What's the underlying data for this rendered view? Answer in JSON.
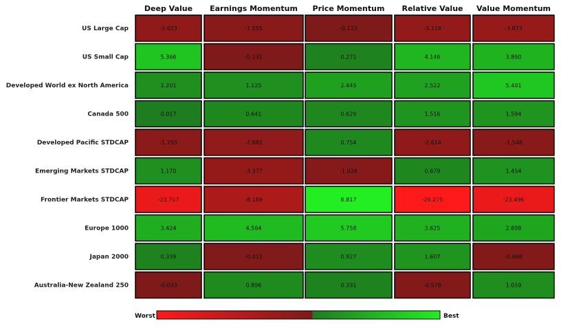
{
  "chart_data": {
    "type": "heatmap",
    "columns": [
      "Deep Value",
      "Earnings Momentum",
      "Price Momentum",
      "Relative Value",
      "Value Momentum"
    ],
    "rows": [
      "US Large Cap",
      "US Small Cap",
      "Developed World ex North America",
      "Canada 500",
      "Developed Pacific STDCAP",
      "Emerging Markets STDCAP",
      "Frontier Markets STDCAP",
      "Europe 1000",
      "Japan 2000",
      "Australia-New Zealand 250"
    ],
    "labels": [
      [
        "-2.623",
        "-1.555",
        "-0.122",
        "-3.114",
        "-3.873"
      ],
      [
        "5.366",
        "-0.132",
        "0.271",
        "4.146",
        "3.860"
      ],
      [
        "1.201",
        "1.125",
        "2.445",
        "2.522",
        "5.481"
      ],
      [
        "0.017",
        "0.641",
        "0.629",
        "1.516",
        "1.594"
      ],
      [
        "-1.793",
        "-2.882",
        "0.754",
        "-2.614",
        "-1.548"
      ],
      [
        "1.170",
        "-3.377",
        "-1.026",
        "0.679",
        "1.454"
      ],
      [
        "-23.767",
        "-8.189",
        "8.817",
        "-29.275",
        "-23.496"
      ],
      [
        "3.424",
        "4.564",
        "5.758",
        "3.625",
        "2.888"
      ],
      [
        "0.339",
        "-0.411",
        "0.927",
        "1.607",
        "-0.668"
      ],
      [
        "-0.033",
        "0.896",
        "0.331",
        "-0.578",
        "1.059"
      ]
    ],
    "values": [
      [
        -2.623,
        -1.555,
        -0.122,
        -3.114,
        -3.873
      ],
      [
        5.366,
        -0.132,
        0.271,
        4.146,
        3.86
      ],
      [
        1.201,
        1.125,
        2.445,
        2.522,
        5.481
      ],
      [
        0.017,
        0.641,
        0.629,
        1.516,
        1.594
      ],
      [
        -1.793,
        -2.882,
        0.754,
        -2.614,
        -1.548
      ],
      [
        1.17,
        -3.377,
        -1.026,
        0.679,
        1.454
      ],
      [
        -23.767,
        -8.189,
        8.817,
        -29.275,
        -23.496
      ],
      [
        3.424,
        4.564,
        5.758,
        3.625,
        2.888
      ],
      [
        0.339,
        -0.411,
        0.927,
        1.607,
        -0.668
      ],
      [
        -0.033,
        0.896,
        0.331,
        -0.578,
        1.059
      ]
    ],
    "legend": {
      "low_label": "Worst",
      "high_label": "Best",
      "placement": "bottom"
    },
    "colors": {
      "worst": "#ff1a1a",
      "dark_red": "#7d1a1a",
      "dark_green": "#1e7d1e",
      "best": "#22ee22",
      "cell_border": "#000000"
    }
  }
}
